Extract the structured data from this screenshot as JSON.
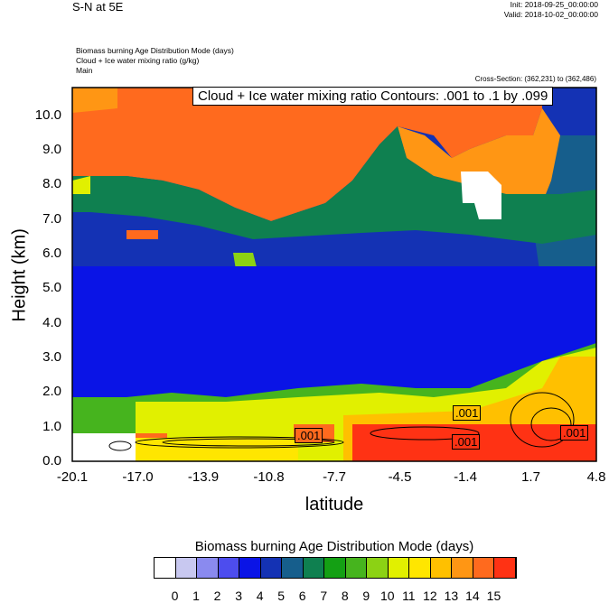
{
  "header": {
    "title": "S-N at 5E",
    "init": "Init: 2018-09-25_00:00:00",
    "valid": "Valid: 2018-10-02_00:00:00",
    "field1": "Biomass burning Age Distribution Mode   (days)",
    "field2": "Cloud + Ice water mixing ratio   (g/kg)",
    "field3": "Main",
    "cross_section": "Cross-Section: (362,231) to (362,486)"
  },
  "chart_data": {
    "type": "heatmap",
    "contour_title": "Cloud + Ice water mixing ratio Contours: .001 to .1 by .099",
    "xlabel": "latitude",
    "ylabel": "Height (km)",
    "xlim": [
      -20.1,
      4.8
    ],
    "ylim": [
      0,
      10.8
    ],
    "x_ticks": [
      "-20.1",
      "-17.0",
      "-13.9",
      "-10.8",
      "-7.7",
      "-4.5",
      "-1.4",
      "1.7",
      "4.8"
    ],
    "y_ticks": [
      "0.0",
      "1.0",
      "2.0",
      "3.0",
      "4.0",
      "5.0",
      "6.0",
      "7.0",
      "8.0",
      "9.0",
      "10.0"
    ],
    "contour_labels": [
      ".001",
      ".001",
      ".001",
      ".001"
    ],
    "colorbar": {
      "title": "Biomass burning Age Distribution Mode  (days)",
      "labels": [
        "0",
        "1",
        "2",
        "3",
        "4",
        "5",
        "6",
        "7",
        "8",
        "9",
        "10",
        "11",
        "12",
        "13",
        "14",
        "15"
      ],
      "colors": [
        "#ffffff",
        "#c8c8f0",
        "#8a8aef",
        "#4d4dee",
        "#0a14e6",
        "#1432b4",
        "#165e8c",
        "#0f8050",
        "#14a014",
        "#46b41e",
        "#8cd214",
        "#e1f000",
        "#ffe600",
        "#ffc000",
        "#ff9614",
        "#ff6a1e",
        "#ff3214"
      ]
    },
    "regions": [
      {
        "band": "upper layer (7.5-10.8 km)",
        "value_days": 14
      },
      {
        "band": "mid layer (3-7 km)",
        "value_days": 4
      },
      {
        "band": "lower layer south (0-1.5 km)",
        "value_days": 11
      },
      {
        "band": "lower layer north (0-1.5 km)",
        "value_days": 15
      },
      {
        "band": "upper north patch",
        "value_days": 0
      }
    ]
  }
}
